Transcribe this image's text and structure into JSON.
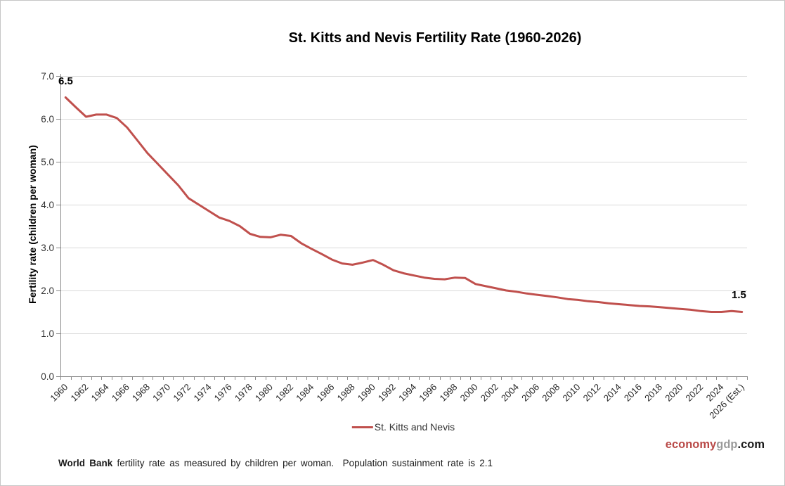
{
  "chart_data": {
    "type": "line",
    "title": "St. Kitts and Nevis Fertility Rate (1960-2026)",
    "ylabel": "Fertility rate (children per woman)",
    "xlabel": "",
    "ylim": [
      0,
      7
    ],
    "ytick_labels": [
      "0.0",
      "1.0",
      "2.0",
      "3.0",
      "4.0",
      "5.0",
      "6.0",
      "7.0"
    ],
    "xtick_labels": [
      "1960",
      "1962",
      "1964",
      "1966",
      "1968",
      "1970",
      "1972",
      "1974",
      "1976",
      "1978",
      "1980",
      "1982",
      "1984",
      "1986",
      "1988",
      "1990",
      "1992",
      "1994",
      "1996",
      "1998",
      "2000",
      "2002",
      "2004",
      "2006",
      "2008",
      "2010",
      "2012",
      "2014",
      "2016",
      "2018",
      "2020",
      "2022",
      "2024",
      "2026 (Est.)"
    ],
    "x_first_year": 1960,
    "x_last_year": 2026,
    "grid": "horizontal",
    "legend_position": "bottom",
    "start_label": "6.5",
    "end_label": "1.5",
    "series": [
      {
        "name": "St. Kitts and Nevis",
        "color": "#C0504D",
        "values": [
          6.5,
          6.27,
          6.05,
          6.1,
          6.1,
          6.02,
          5.8,
          5.5,
          5.2,
          4.95,
          4.7,
          4.45,
          4.15,
          4.0,
          3.85,
          3.7,
          3.62,
          3.5,
          3.32,
          3.25,
          3.24,
          3.3,
          3.27,
          3.1,
          2.97,
          2.85,
          2.72,
          2.63,
          2.6,
          2.65,
          2.71,
          2.6,
          2.47,
          2.4,
          2.35,
          2.3,
          2.27,
          2.26,
          2.3,
          2.29,
          2.15,
          2.1,
          2.05,
          2.0,
          1.97,
          1.93,
          1.9,
          1.87,
          1.84,
          1.8,
          1.78,
          1.75,
          1.73,
          1.7,
          1.68,
          1.66,
          1.64,
          1.63,
          1.61,
          1.59,
          1.57,
          1.55,
          1.52,
          1.5,
          1.5,
          1.52,
          1.5
        ]
      }
    ]
  },
  "legend": {
    "label": "St. Kitts and Nevis"
  },
  "footnote": {
    "bold": "World Bank",
    "rest": " fertility rate as measured by children per woman.  Population sustainment rate is 2.1"
  },
  "watermark": {
    "part1": "economy",
    "part2": "gdp",
    "part3": ".com"
  },
  "colors": {
    "line": "#C0504D",
    "gridline": "#D9D9D9",
    "axis": "#898989",
    "tick_text": "#333333"
  }
}
